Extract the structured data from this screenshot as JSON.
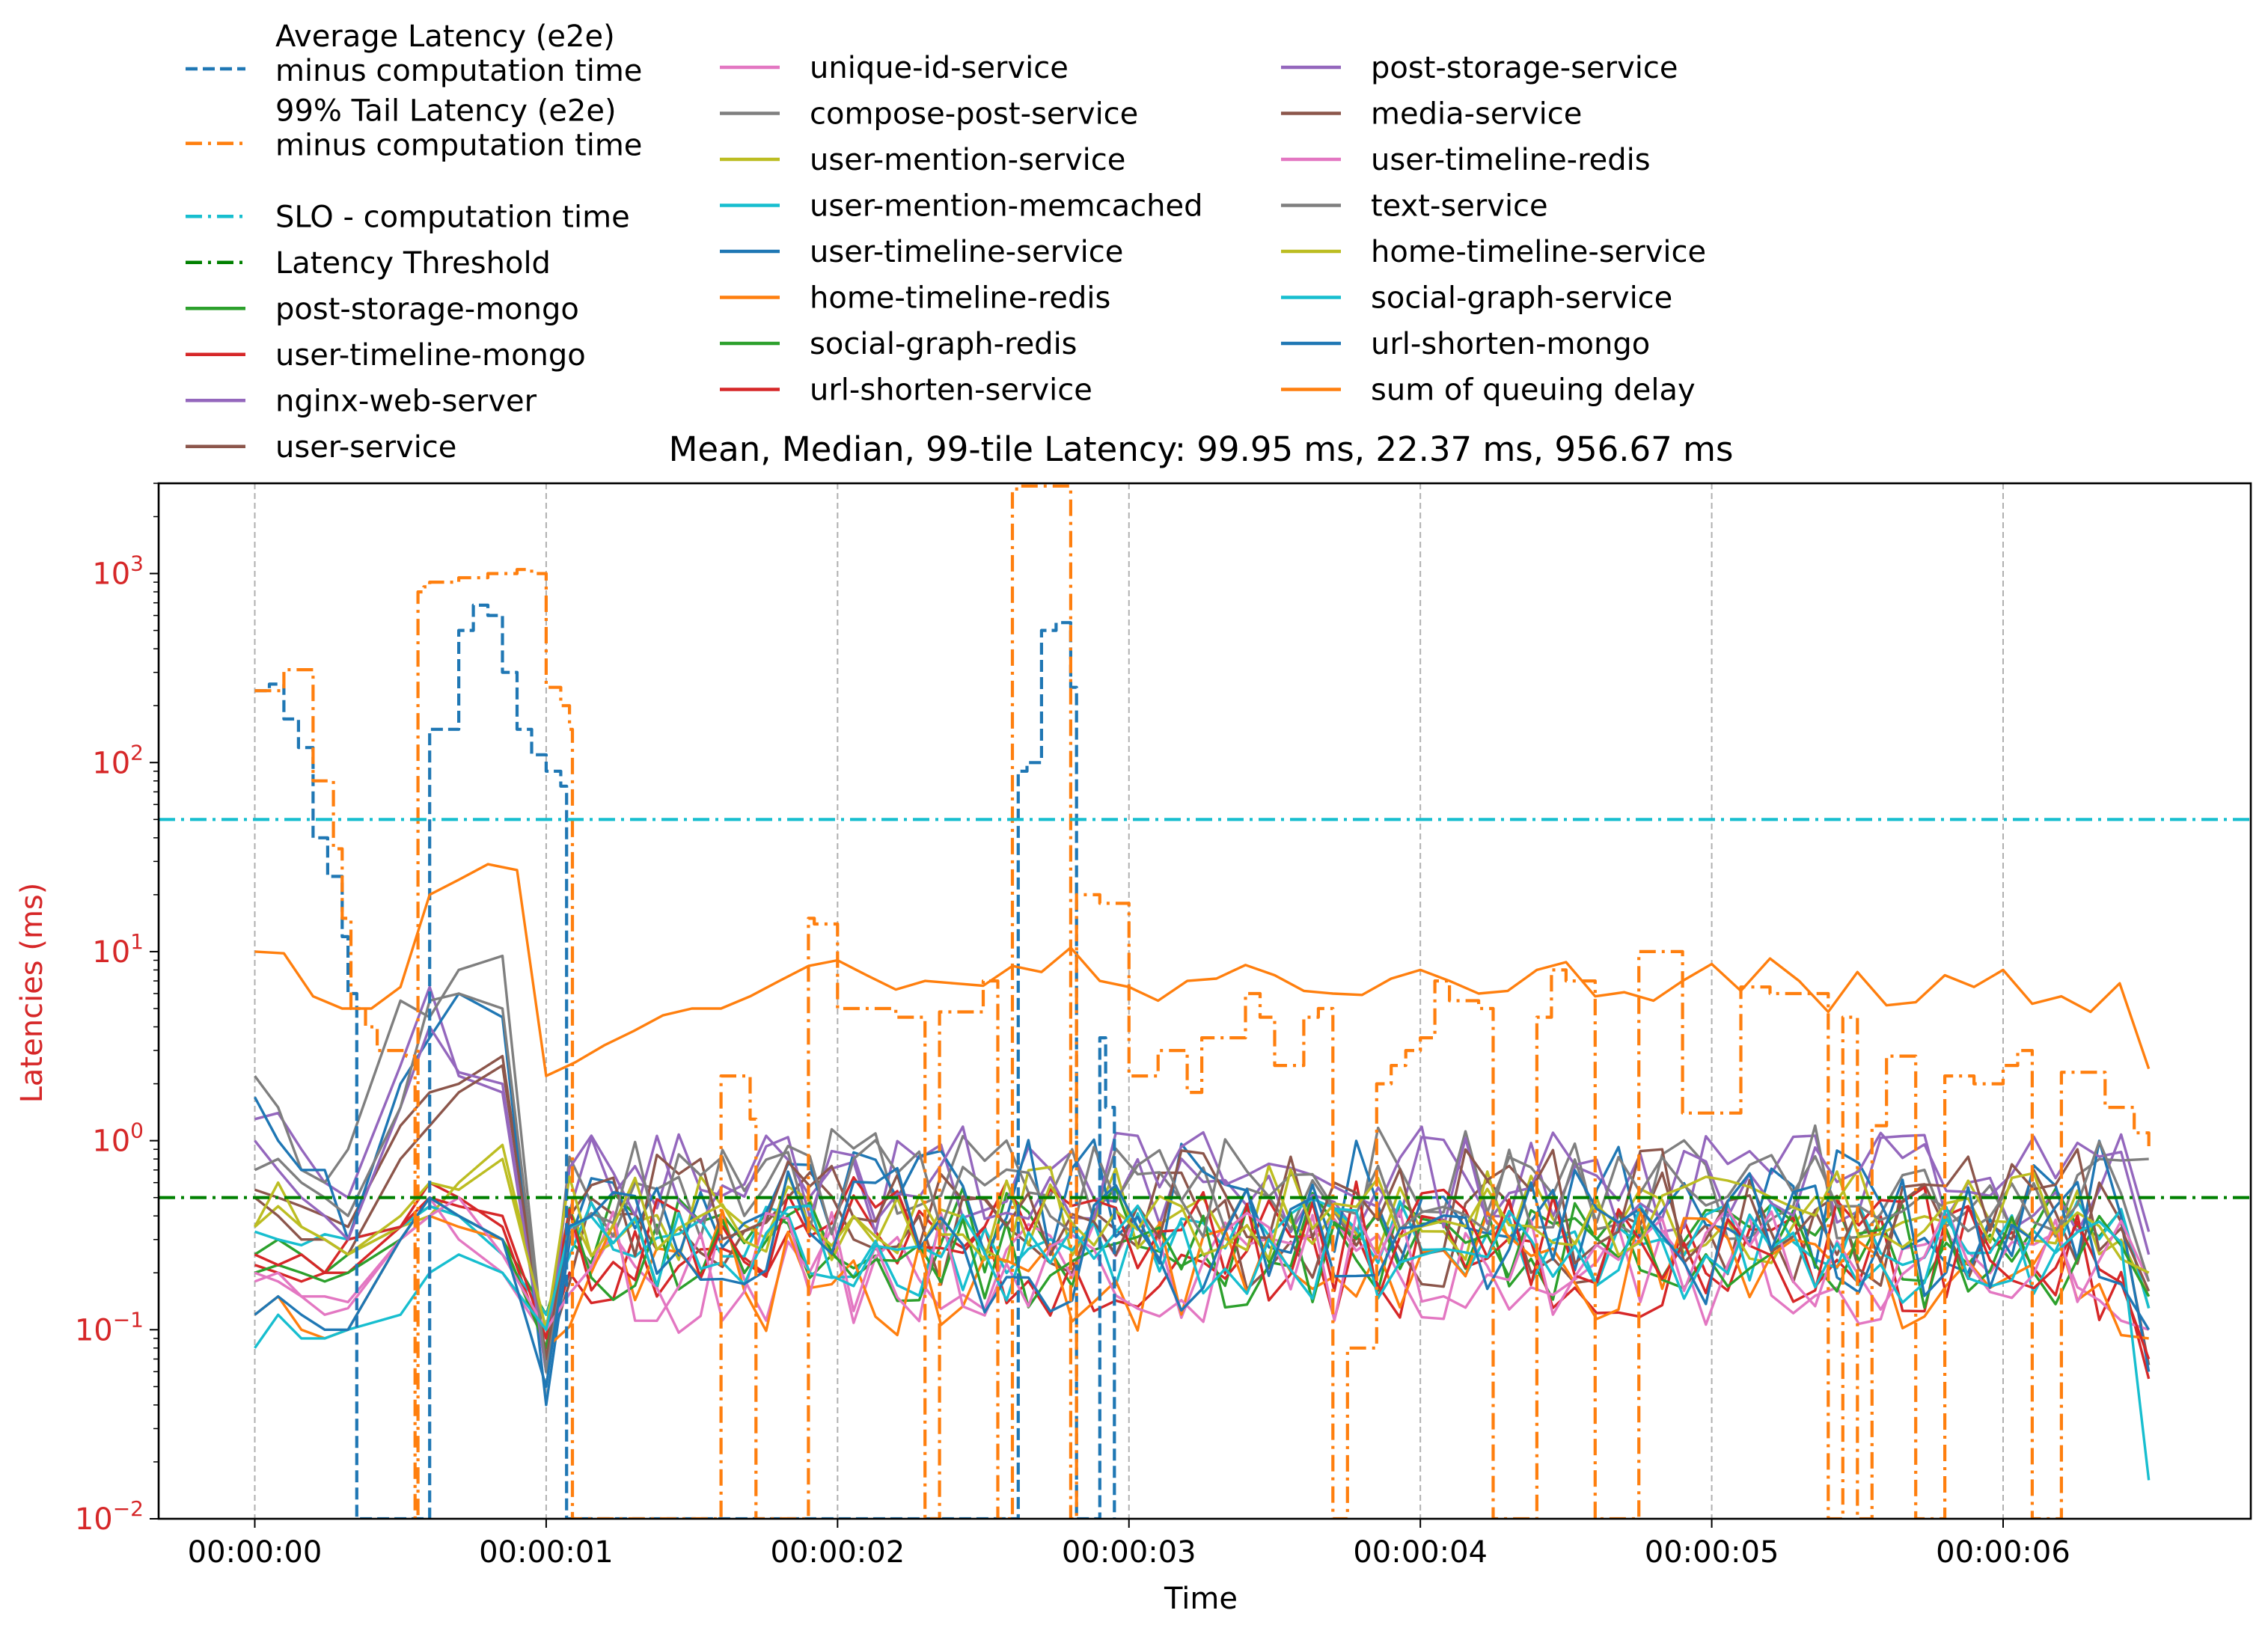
{
  "chart_data": {
    "type": "line",
    "title": "Mean, Median, 99-tile Latency: 99.95 ms, 22.37 ms, 956.67 ms",
    "xlabel": "Time",
    "ylabel": "Latencies (ms)",
    "yscale": "log",
    "ylim": [
      0.01,
      3000
    ],
    "xlim": [
      -0.33,
      6.85
    ],
    "x_units": "seconds",
    "grid": "vertical dashed at x ticks",
    "legend_placement": "top-left, above the plot, 3 columns",
    "colors": {
      "avg": "#1f77b4",
      "tail": "#ff7f0e",
      "slo": "#17becf",
      "threshold": "#008000",
      "ylabel": "#d62728",
      "ytick": "#d62728"
    },
    "x_ticks": [
      {
        "v": 0,
        "label": "00:00:00"
      },
      {
        "v": 1,
        "label": "00:00:01"
      },
      {
        "v": 2,
        "label": "00:00:02"
      },
      {
        "v": 3,
        "label": "00:00:03"
      },
      {
        "v": 4,
        "label": "00:00:04"
      },
      {
        "v": 5,
        "label": "00:00:05"
      },
      {
        "v": 6,
        "label": "00:00:06"
      }
    ],
    "y_ticks": [
      {
        "v": 0.01,
        "base": "10",
        "exp": "−2"
      },
      {
        "v": 0.1,
        "base": "10",
        "exp": "−1"
      },
      {
        "v": 1,
        "base": "10",
        "exp": "0"
      },
      {
        "v": 10,
        "base": "10",
        "exp": "1"
      },
      {
        "v": 100,
        "base": "10",
        "exp": "2"
      },
      {
        "v": 1000,
        "base": "10",
        "exp": "3"
      }
    ],
    "series": [
      {
        "name": "Average Latency (e2e)\nminus computation time",
        "color": "#1f77b4",
        "dash": "dashed",
        "x": [
          0,
          0.05,
          0.1,
          0.15,
          0.2,
          0.25,
          0.3,
          0.32,
          0.35,
          0.4,
          0.5,
          0.55,
          0.6,
          0.7,
          0.75,
          0.8,
          0.85,
          0.9,
          0.95,
          1.0,
          1.05,
          1.07,
          1.1,
          2.0,
          2.6,
          2.62,
          2.65,
          2.7,
          2.75,
          2.8,
          2.82,
          2.85,
          2.9,
          2.92,
          2.95
        ],
        "y": [
          240,
          260,
          170,
          120,
          40,
          25,
          12,
          6,
          0.01,
          0.01,
          0.01,
          0.01,
          150,
          500,
          680,
          600,
          300,
          150,
          110,
          90,
          75,
          0.01,
          0.01,
          0.01,
          0.01,
          90,
          100,
          500,
          550,
          250,
          0.01,
          0.01,
          3.5,
          1.5,
          0.01
        ]
      },
      {
        "name": "99% Tail Latency (e2e)\nminus computation time",
        "color": "#ff7f0e",
        "dash": "dashdot",
        "x": [
          0,
          0.1,
          0.17,
          0.2,
          0.27,
          0.3,
          0.33,
          0.38,
          0.42,
          0.52,
          0.55,
          0.56,
          0.58,
          0.6,
          0.7,
          0.8,
          0.9,
          0.95,
          1.0,
          1.05,
          1.08,
          1.09,
          1.1,
          1.55,
          1.6,
          1.7,
          1.72,
          1.8,
          1.9,
          1.92,
          2.0,
          2.05,
          2.1,
          2.2,
          2.3,
          2.35,
          2.5,
          2.55,
          2.6,
          2.62,
          2.7,
          2.8,
          2.82,
          2.9,
          3.0,
          3.05,
          3.1,
          3.2,
          3.25,
          3.4,
          3.45,
          3.5,
          3.6,
          3.65,
          3.7,
          3.75,
          3.8,
          3.85,
          3.9,
          3.95,
          4.0,
          4.05,
          4.1,
          4.2,
          4.25,
          4.4,
          4.45,
          4.5,
          4.6,
          4.7,
          4.75,
          4.8,
          4.9,
          5.0,
          5.1,
          5.2,
          5.3,
          5.4,
          5.45,
          5.5,
          5.55,
          5.6,
          5.7,
          5.75,
          5.8,
          5.9,
          6.0,
          6.05,
          6.1,
          6.2,
          6.25,
          6.35,
          6.4,
          6.45,
          6.5
        ],
        "y": [
          240,
          310,
          310,
          80,
          35,
          15,
          5,
          4,
          3,
          2.8,
          0.01,
          800,
          850,
          900,
          950,
          1000,
          1050,
          1000,
          250,
          200,
          150,
          0.01,
          0.01,
          0.01,
          2.2,
          1.3,
          0.01,
          0.01,
          15,
          14,
          5,
          5,
          5,
          4.5,
          0.01,
          4.8,
          7,
          0.01,
          2800,
          2900,
          2900,
          0.01,
          20,
          18,
          2.2,
          2.2,
          3,
          1.8,
          3.5,
          6,
          4.5,
          2.5,
          4.5,
          5,
          0.01,
          0.08,
          0.08,
          2,
          2.5,
          3,
          3.5,
          7,
          5.5,
          5,
          0.01,
          4.5,
          8,
          7,
          0.01,
          0.01,
          10,
          10,
          1.4,
          1.4,
          6.5,
          6,
          6,
          0.01,
          4.5,
          0.01,
          1.2,
          2.8,
          0.01,
          0.01,
          2.2,
          2.0,
          2.5,
          3,
          0.01,
          2.3,
          2.3,
          1.5,
          1.5,
          1.1,
          0.9
        ]
      },
      {
        "name": "SLO - computation time",
        "color": "#17becf",
        "dash": "dashdot",
        "x": [
          -0.33,
          6.85
        ],
        "y": [
          50,
          50
        ]
      },
      {
        "name": "Latency Threshold",
        "color": "#008000",
        "dash": "dashdot",
        "x": [
          -0.33,
          6.85
        ],
        "y": [
          0.5,
          0.5
        ]
      },
      {
        "name": "post-storage-mongo",
        "color": "#2ca02c",
        "seed": 1,
        "start": [
          0.25,
          0.3,
          0.25,
          0.2,
          0.25
        ],
        "spike": [
          0.35,
          0.45,
          0.4,
          0.3,
          0.12
        ],
        "mid": 0.28,
        "amp": 0.55,
        "end": 0.13
      },
      {
        "name": "user-timeline-mongo",
        "color": "#d62728",
        "seed": 2,
        "start": [
          0.22,
          0.2,
          0.18,
          0.2,
          0.2
        ],
        "spike": [
          0.35,
          0.6,
          0.5,
          0.35,
          0.08
        ],
        "mid": 0.24,
        "amp": 0.6,
        "end": 0.055
      },
      {
        "name": "nginx-web-server",
        "color": "#9467bd",
        "seed": 3,
        "start": [
          1.3,
          1.4,
          0.9,
          0.6,
          0.5
        ],
        "spike": [
          2.5,
          6.5,
          2.2,
          1.8,
          0.06
        ],
        "mid": 0.6,
        "amp": 0.5,
        "end": 0.33
      },
      {
        "name": "user-service",
        "color": "#8c564b",
        "seed": 4,
        "start": [
          0.55,
          0.5,
          0.45,
          0.4,
          0.35
        ],
        "spike": [
          1.2,
          1.8,
          2.0,
          2.8,
          0.07
        ],
        "mid": 0.35,
        "amp": 0.6,
        "end": 0.065
      },
      {
        "name": "unique-id-service",
        "color": "#e377c2",
        "seed": 5,
        "start": [
          0.18,
          0.2,
          0.15,
          0.12,
          0.13
        ],
        "spike": [
          0.3,
          0.5,
          0.3,
          0.2,
          0.09
        ],
        "mid": 0.2,
        "amp": 0.6,
        "end": 0.1
      },
      {
        "name": "compose-post-service",
        "color": "#7f7f7f",
        "seed": 6,
        "start": [
          2.2,
          1.5,
          0.7,
          0.6,
          0.9
        ],
        "spike": [
          5.5,
          4.5,
          8.0,
          9.5,
          0.06
        ],
        "mid": 0.6,
        "amp": 0.55,
        "end": 0.8
      },
      {
        "name": "user-mention-service",
        "color": "#bcbd22",
        "seed": 7,
        "start": [
          0.35,
          0.45,
          0.35,
          0.3,
          0.25
        ],
        "spike": [
          0.35,
          0.4,
          0.6,
          0.95,
          0.1
        ],
        "mid": 0.4,
        "amp": 0.5,
        "end": 0.15
      },
      {
        "name": "user-mention-memcached",
        "color": "#17becf",
        "seed": 8,
        "start": [
          0.33,
          0.3,
          0.28,
          0.32,
          0.3
        ],
        "spike": [
          0.35,
          0.45,
          0.4,
          0.25,
          0.12
        ],
        "mid": 0.28,
        "amp": 0.5,
        "end": 0.13
      },
      {
        "name": "user-timeline-service",
        "color": "#1f77b4",
        "seed": 9,
        "start": [
          1.7,
          1.0,
          0.7,
          0.7,
          0.3
        ],
        "spike": [
          2.0,
          3.5,
          6.0,
          4.5,
          0.04
        ],
        "mid": 0.45,
        "amp": 0.65,
        "end": 0.06
      },
      {
        "name": "home-timeline-redis",
        "color": "#ff7f0e",
        "seed": 10,
        "start": [
          0.12,
          0.15,
          0.1,
          0.09,
          0.1
        ],
        "spike": [
          0.3,
          0.4,
          0.35,
          0.3,
          0.08
        ],
        "mid": 0.2,
        "amp": 0.6,
        "end": 0.09
      },
      {
        "name": "social-graph-redis",
        "color": "#2ca02c",
        "seed": 11,
        "start": [
          0.2,
          0.22,
          0.2,
          0.18,
          0.2
        ],
        "spike": [
          0.3,
          0.5,
          0.4,
          0.3,
          0.08
        ],
        "mid": 0.25,
        "amp": 0.55,
        "end": 0.15
      },
      {
        "name": "url-shorten-service",
        "color": "#d62728",
        "seed": 12,
        "start": [
          0.25,
          0.22,
          0.25,
          0.2,
          0.3
        ],
        "spike": [
          0.35,
          0.5,
          0.45,
          0.4,
          0.09
        ],
        "mid": 0.3,
        "amp": 0.6,
        "end": 0.07
      },
      {
        "name": "post-storage-service",
        "color": "#9467bd",
        "seed": 13,
        "start": [
          1.0,
          0.7,
          0.5,
          0.4,
          0.3
        ],
        "spike": [
          1.5,
          4.0,
          2.3,
          2.0,
          0.06
        ],
        "mid": 0.65,
        "amp": 0.5,
        "end": 0.25
      },
      {
        "name": "media-service",
        "color": "#8c564b",
        "seed": 14,
        "start": [
          0.5,
          0.4,
          0.3,
          0.3,
          0.25
        ],
        "spike": [
          0.8,
          1.2,
          1.8,
          2.5,
          0.07
        ],
        "mid": 0.45,
        "amp": 0.55,
        "end": 0.16
      },
      {
        "name": "user-timeline-redis",
        "color": "#e377c2",
        "seed": 15,
        "start": [
          0.2,
          0.18,
          0.15,
          0.15,
          0.14
        ],
        "spike": [
          0.3,
          0.4,
          0.5,
          0.25,
          0.1
        ],
        "mid": 0.22,
        "amp": 0.55,
        "end": 0.18
      },
      {
        "name": "text-service",
        "color": "#7f7f7f",
        "seed": 16,
        "start": [
          0.7,
          0.8,
          0.6,
          0.5,
          0.4
        ],
        "spike": [
          1.5,
          5.5,
          6.0,
          5.0,
          0.06
        ],
        "mid": 0.55,
        "amp": 0.5,
        "end": 0.18
      },
      {
        "name": "home-timeline-service",
        "color": "#bcbd22",
        "seed": 17,
        "start": [
          0.35,
          0.6,
          0.35,
          0.3,
          0.25
        ],
        "spike": [
          0.4,
          0.6,
          0.55,
          0.8,
          0.1
        ],
        "mid": 0.4,
        "amp": 0.45,
        "end": 0.2
      },
      {
        "name": "social-graph-service",
        "color": "#17becf",
        "seed": 18,
        "start": [
          0.08,
          0.12,
          0.09,
          0.09,
          0.1
        ],
        "spike": [
          0.12,
          0.2,
          0.25,
          0.2,
          0.1
        ],
        "mid": 0.25,
        "amp": 0.5,
        "end": 0.016
      },
      {
        "name": "url-shorten-mongo",
        "color": "#1f77b4",
        "seed": 19,
        "start": [
          0.12,
          0.15,
          0.12,
          0.1,
          0.1
        ],
        "spike": [
          0.3,
          0.5,
          0.4,
          0.3,
          0.05
        ],
        "mid": 0.3,
        "amp": 0.7,
        "end": 0.1
      },
      {
        "name": "sum of queuing delay",
        "color": "#ff7f0e",
        "dash": "solid",
        "x": [
          0,
          0.1,
          0.2,
          0.3,
          0.4,
          0.5,
          0.6,
          0.7,
          0.8,
          0.9,
          1.0,
          1.1,
          1.2,
          1.3,
          1.4,
          1.5,
          1.6,
          1.7,
          1.8,
          1.9,
          2.0,
          2.1,
          2.2,
          2.3,
          2.4,
          2.5,
          2.6,
          2.7,
          2.8,
          2.9,
          3.0,
          3.1,
          3.2,
          3.3,
          3.4,
          3.5,
          3.6,
          3.7,
          3.8,
          3.9,
          4.0,
          4.1,
          4.2,
          4.3,
          4.4,
          4.5,
          4.6,
          4.7,
          4.8,
          4.9,
          5.0,
          5.1,
          5.2,
          5.3,
          5.4,
          5.5,
          5.6,
          5.7,
          5.8,
          5.9,
          6.0,
          6.1,
          6.2,
          6.3,
          6.4,
          6.5
        ],
        "y": [
          10,
          9.8,
          5.8,
          5,
          5,
          6.5,
          20,
          24,
          29,
          27,
          2.2,
          2.6,
          3.2,
          3.8,
          4.6,
          5,
          5,
          5.8,
          7,
          8.4,
          9,
          7.5,
          6.3,
          7,
          6.8,
          6.6,
          8.4,
          7.8,
          10.5,
          7,
          6.5,
          5.5,
          7,
          7.2,
          8.5,
          7.5,
          6.2,
          6,
          5.9,
          7.2,
          8,
          7,
          6,
          6.2,
          8,
          8.8,
          5.8,
          6.1,
          5.5,
          7,
          8.6,
          6.2,
          9.2,
          7,
          4.8,
          7.8,
          5.2,
          5.4,
          7.5,
          6.5,
          8,
          5.3,
          5.8,
          4.8,
          6.8,
          2.4
        ]
      }
    ]
  }
}
